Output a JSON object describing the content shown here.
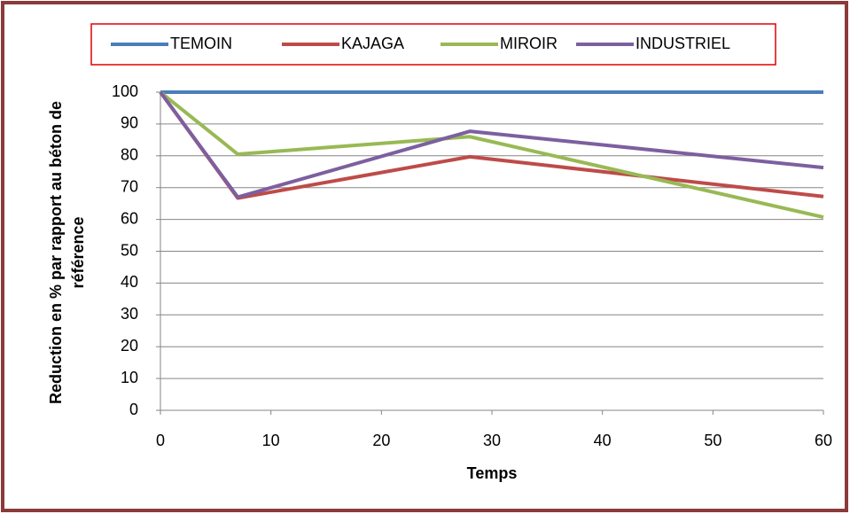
{
  "chart_data": {
    "type": "line",
    "xlabel": "Temps",
    "ylabel": [
      "Reduction en % par rapport au béton de",
      "référence"
    ],
    "x": [
      0,
      7,
      28,
      60
    ],
    "series": [
      {
        "name": "TEMOIN",
        "color": "#4a7ebb",
        "values": [
          100,
          100,
          100,
          100
        ]
      },
      {
        "name": "KAJAGA",
        "color": "#be4b48",
        "values": [
          100,
          66.7,
          79.7,
          67.2
        ]
      },
      {
        "name": "MIROIR",
        "color": "#98b954",
        "values": [
          100,
          80.5,
          86,
          60.7
        ]
      },
      {
        "name": "INDUSTRIEL",
        "color": "#7d5fa0",
        "values": [
          100,
          67,
          87.7,
          76.3
        ]
      }
    ],
    "xlim": [
      0,
      60
    ],
    "xticks": [
      0,
      10,
      20,
      30,
      40,
      50,
      60
    ],
    "ylim": [
      0,
      100
    ],
    "yticks": [
      0,
      10,
      20,
      30,
      40,
      50,
      60,
      70,
      80,
      90,
      100
    ],
    "grid": true,
    "legend": "top"
  }
}
